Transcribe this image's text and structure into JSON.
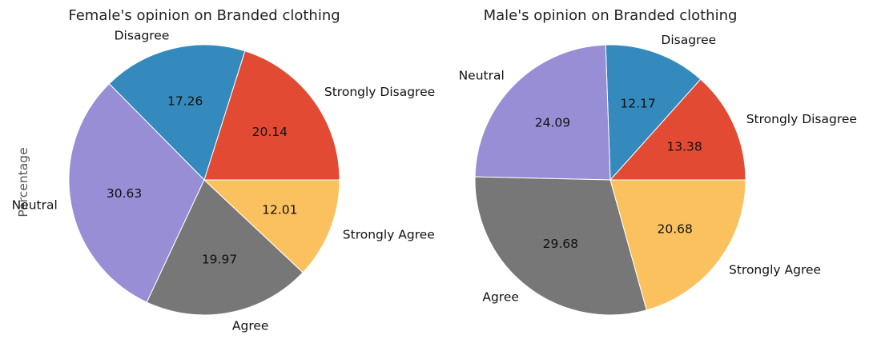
{
  "colors": {
    "strongly_disagree": "#E24A33",
    "disagree": "#348ABD",
    "neutral": "#988ED5",
    "agree": "#777777",
    "strongly_agree": "#FBC15E",
    "edge": "#ffffff"
  },
  "chart_data": [
    {
      "type": "pie",
      "title": "Female's opinion on Branded clothing",
      "ylabel": "Percentage",
      "start_angle_deg": 0,
      "direction": "counterclockwise",
      "categories": [
        "Strongly Disagree",
        "Disagree",
        "Neutral",
        "Agree",
        "Strongly Agree"
      ],
      "values": [
        20.14,
        17.26,
        30.63,
        19.97,
        12.01
      ],
      "value_labels": [
        "20.14",
        "17.26",
        "30.63",
        "19.97",
        "12.01"
      ],
      "color_keys": [
        "strongly_disagree",
        "disagree",
        "neutral",
        "agree",
        "strongly_agree"
      ]
    },
    {
      "type": "pie",
      "title": "Male's opinion on Branded clothing",
      "ylabel": "",
      "start_angle_deg": 0,
      "direction": "counterclockwise",
      "categories": [
        "Strongly Disagree",
        "Disagree",
        "Neutral",
        "Agree",
        "Strongly Agree"
      ],
      "values": [
        13.38,
        12.17,
        24.09,
        29.68,
        20.68
      ],
      "value_labels": [
        "13.38",
        "12.17",
        "24.09",
        "29.68",
        "20.68"
      ],
      "color_keys": [
        "strongly_disagree",
        "disagree",
        "neutral",
        "agree",
        "strongly_agree"
      ]
    }
  ]
}
